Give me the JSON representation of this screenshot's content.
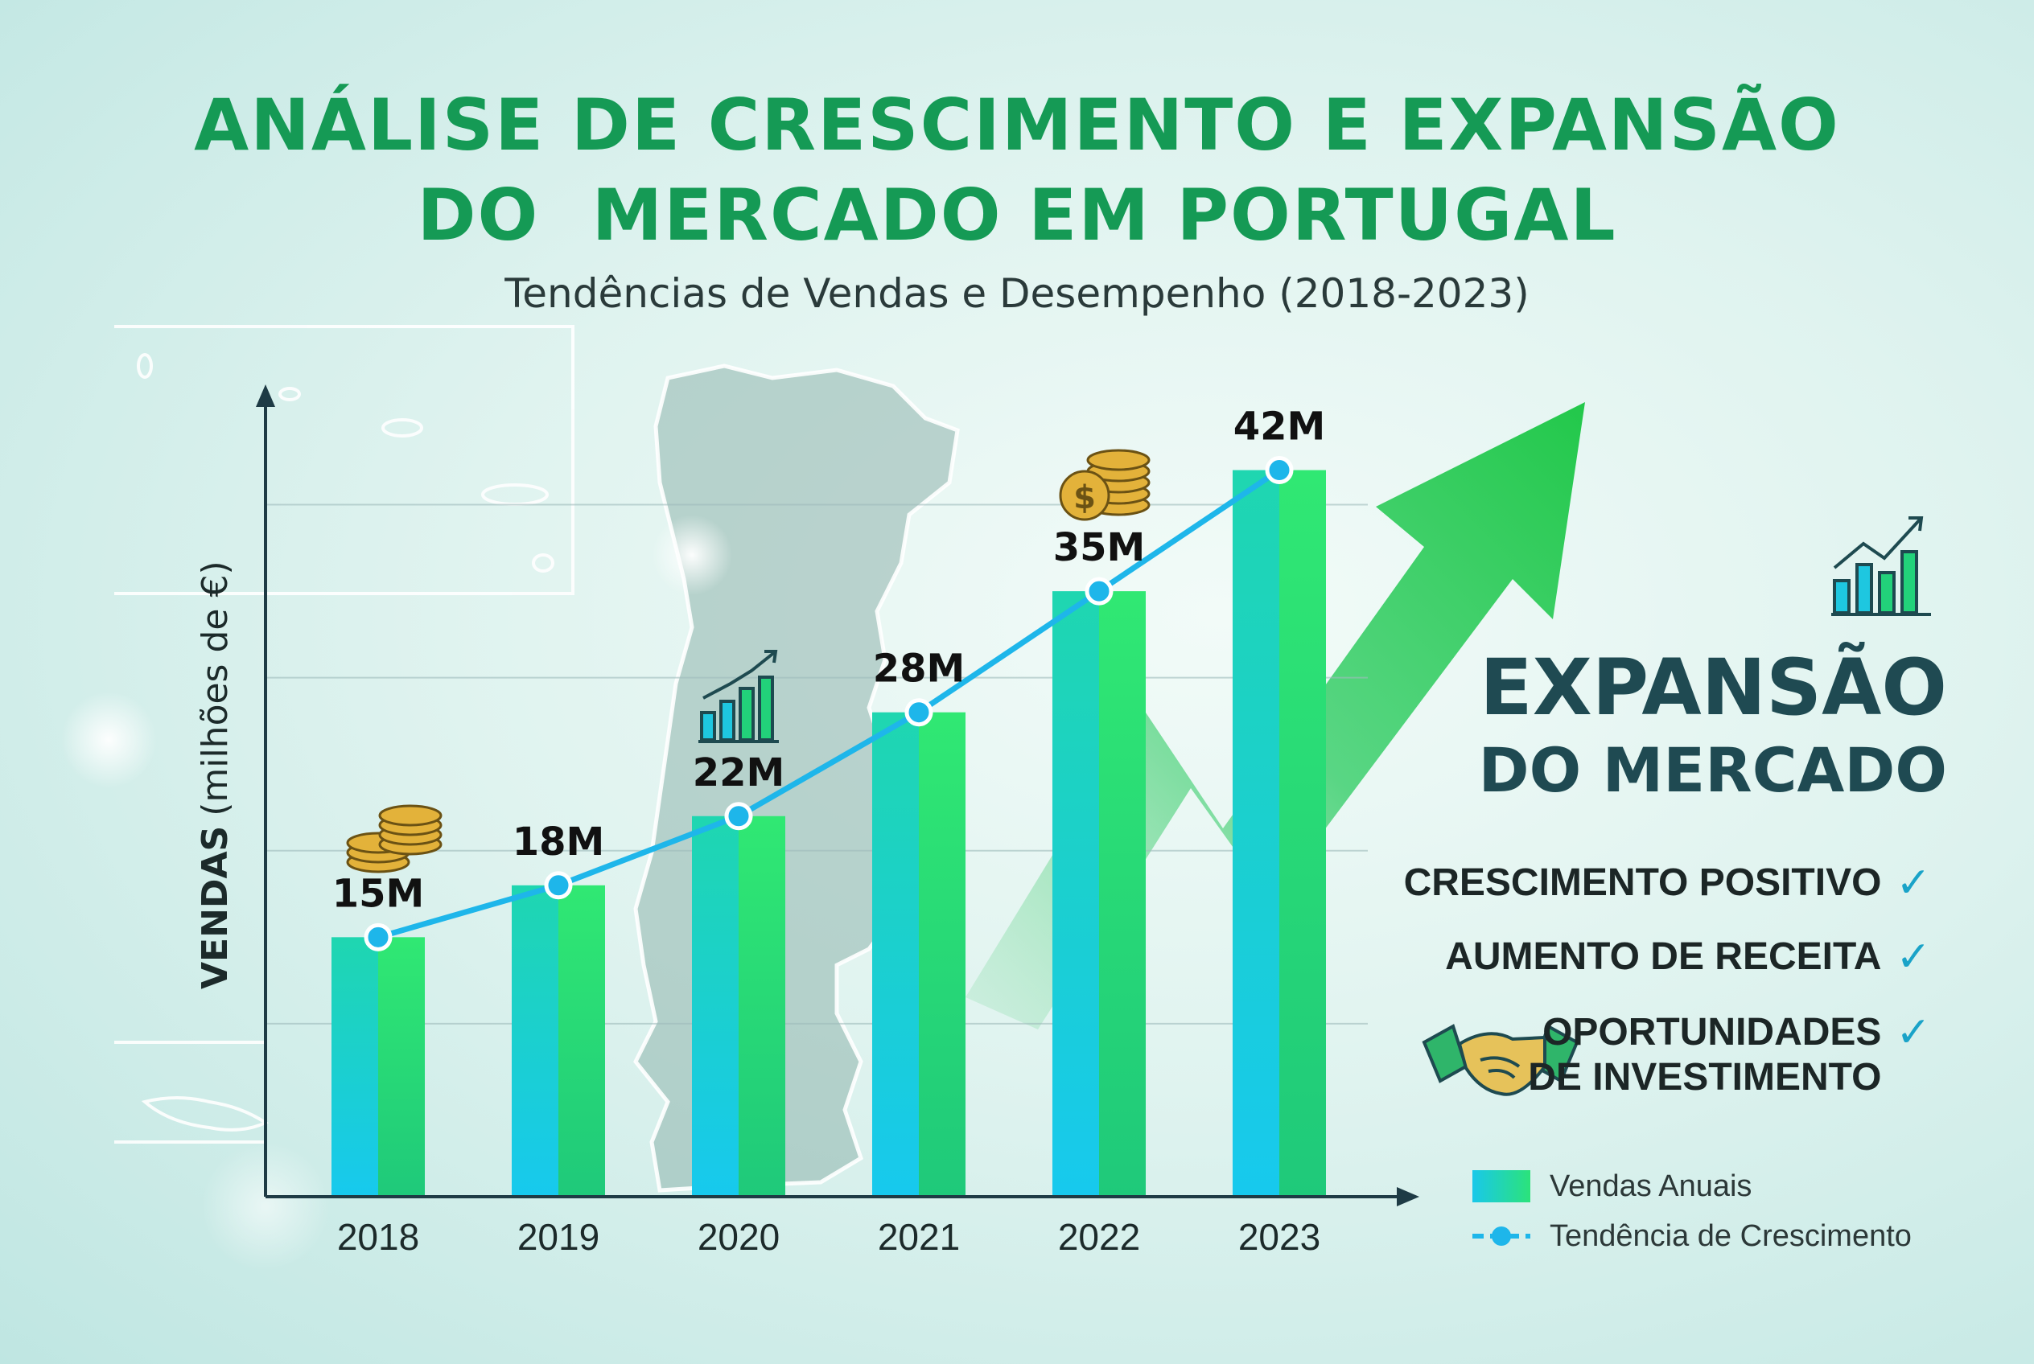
{
  "header": {
    "title_line1": "ANÁLISE DE CRESCIMENTO E EXPANSÃO",
    "title_line2": "DO  MERCADO EM PORTUGAL",
    "subtitle": "Tendências de Vendas e Desempenho (2018-2023)"
  },
  "chart_data": {
    "type": "bar",
    "categories": [
      "2018",
      "2019",
      "2020",
      "2021",
      "2022",
      "2023"
    ],
    "series": [
      {
        "name": "Vendas Anuais",
        "values": [
          15,
          18,
          22,
          28,
          35,
          42
        ]
      },
      {
        "name": "Tendência de Crescimento",
        "values": [
          15,
          18,
          22,
          28,
          35,
          42
        ]
      }
    ],
    "data_labels": [
      "15M",
      "18M",
      "22M",
      "28M",
      "35M",
      "42M"
    ],
    "ylabel_bold": "VENDAS",
    "ylabel_rest": "(milhões de €)",
    "ylim": [
      0,
      45
    ],
    "grid": true,
    "legend_position": "bottom-right"
  },
  "expansion": {
    "title_line1": "EXPANSÃO",
    "title_line2": "DO MERCADO",
    "features": [
      {
        "line1": "CRESCIMENTO POSITIVO",
        "check": "✓"
      },
      {
        "line1": "AUMENTO DE RECEITA",
        "check": "✓"
      },
      {
        "line1": "OPORTUNIDADES",
        "line2": "DE INVESTIMENTO",
        "check": "✓"
      }
    ]
  },
  "icons": [
    "coins-icon",
    "growth-chart-icon",
    "dollar-coins-icon",
    "trend-chart-icon",
    "handshake-icon",
    "portugal-map-icon",
    "growth-arrow-icon"
  ],
  "colors": {
    "title": "#159a55",
    "bar_left": "#19c8ea",
    "bar_right": "#2be37a",
    "trend": "#1eb6ea",
    "check": "#1aa3c8"
  }
}
